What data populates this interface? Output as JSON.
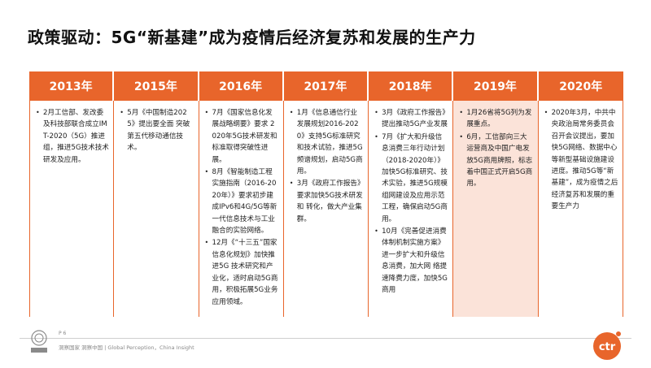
{
  "title": "政策驱动：5G“新基建”成为疫情后经济复苏和发展的生产力",
  "columns": [
    {
      "year": "2013年",
      "items": [
        "2月工信部、发改委及科技部联合成立IMT-2020（5G）推进组，推进5G技术技术研发及应用。"
      ]
    },
    {
      "year": "2015年",
      "items": [
        "5月《中国制造2025》提出要全面 突破第五代移动通信技术。"
      ]
    },
    {
      "year": "2016年",
      "items": [
        "7月《国家信息化发展战略纲要》要求 2020年5G技术研发和标准取得突破性进展。",
        "8月《智能制造工程实施指南（2016-2020年）》要求初步建成IPv6和4G/5G等新一代信息技术与工业融合的实验网络。",
        "12月《“十三五”国家信息化规划》加快推进5G 技术研究和产业化，适时启动5G商用，积极拓展5G业务应用领域。"
      ]
    },
    {
      "year": "2017年",
      "items": [
        "1月《信息通信行业发展规划2016-2020》支持5G标准研究和技术试验，推进5G 频谱规划，启动5G商用。",
        "3月《政府工作报告》要求加快5G技术研发和 转化，做大产业集群。"
      ]
    },
    {
      "year": "2018年",
      "items": [
        "3月《政府工作报告》提出推动5G产业发展",
        "7月《扩大和升级信息消费三年行动计划（2018-2020年）》加快5G标准研究、技术实验，推进5G规模组网建设及应用示范工程，确保启动5G商用。",
        "10月《完善促进消费体制机制实施方案》进一步扩大和升级信息消费，加大网 络提速降费力度，加快5G商用"
      ]
    },
    {
      "year": "2019年",
      "highlight": true,
      "items": [
        "1月26省将5G列为发展重点。",
        "6月，工信部向三大运营商及中国广电发放5G商用牌照，标志着中国正式开启5G商用。"
      ]
    },
    {
      "year": "2020年",
      "items": [
        "2020年3月，中共中央政治局常务委员会召开会议提出，要加快5G网络、数据中心等新型基础设施建设进度。推动5G等“新基建”，成为疫情之后经济复苏和发展的重要生产力"
      ]
    }
  ],
  "footer": {
    "page": "P 6",
    "slogan": "洞察国家 洞察中国 | Global Perception，China Insight",
    "brand": "ctr"
  },
  "colors": {
    "accent": "#e8652b",
    "highlight_bg": "#fbe3d9"
  }
}
